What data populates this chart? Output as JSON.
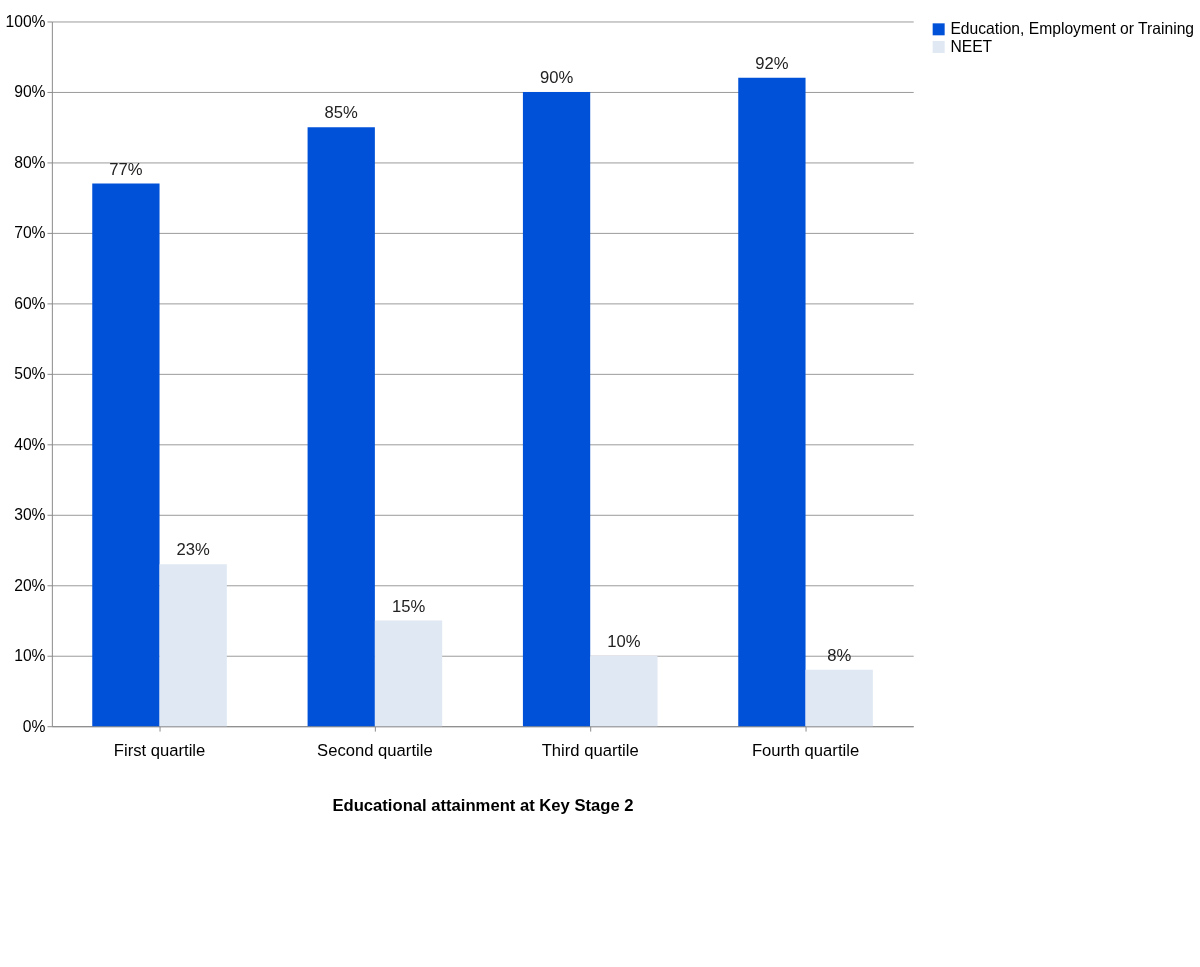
{
  "chart_data": {
    "type": "bar",
    "xlabel": "Educational attainment at Key Stage 2",
    "categories": [
      "First quartile",
      "Second quartile",
      "Third quartile",
      "Fourth quartile"
    ],
    "series": [
      {
        "name": "Education, Employment or Training",
        "color": "#0050d8",
        "values": [
          77,
          85,
          90,
          92
        ],
        "value_labels": [
          "77%",
          "85%",
          "90%",
          "92%"
        ]
      },
      {
        "name": "NEET",
        "color": "#dfe8f3",
        "values": [
          23,
          15,
          10,
          8
        ],
        "value_labels": [
          "23%",
          "15%",
          "10%",
          "8%"
        ]
      }
    ],
    "ylim": [
      0,
      100
    ],
    "yticks": [
      {
        "value": 0,
        "label": "0%"
      },
      {
        "value": 10,
        "label": "10%"
      },
      {
        "value": 20,
        "label": "20%"
      },
      {
        "value": 30,
        "label": "30%"
      },
      {
        "value": 40,
        "label": "40%"
      },
      {
        "value": 50,
        "label": "50%"
      },
      {
        "value": 60,
        "label": "60%"
      },
      {
        "value": 70,
        "label": "70%"
      },
      {
        "value": 80,
        "label": "80%"
      },
      {
        "value": 90,
        "label": "90%"
      },
      {
        "value": 100,
        "label": "100%"
      }
    ],
    "grid": "y",
    "legend": "right"
  }
}
